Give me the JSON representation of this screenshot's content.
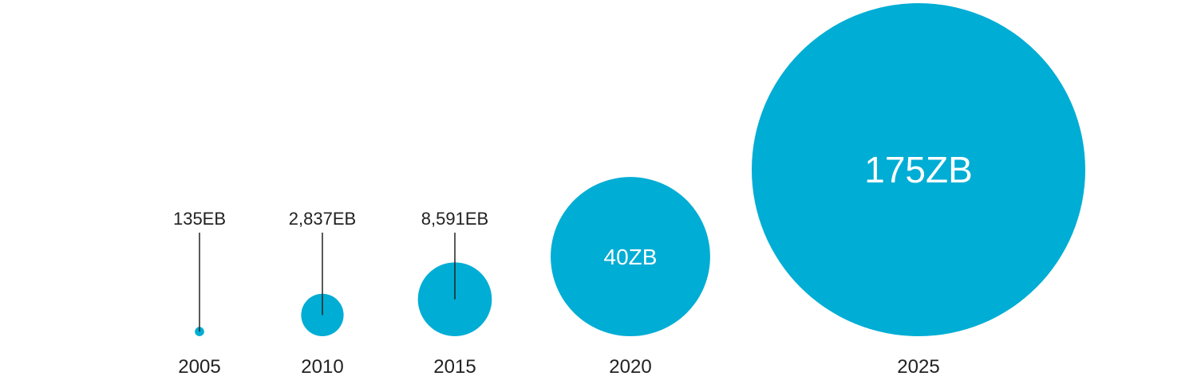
{
  "chart_data": {
    "type": "bubble",
    "unit_note": "",
    "bubble_color": "#00ADD4",
    "text_color": "#222222",
    "inside_text_color": "#ffffff",
    "points": [
      {
        "year": "2005",
        "value_label": "135EB",
        "value_eb": 135,
        "label_position": "above-with-leader"
      },
      {
        "year": "2010",
        "value_label": "2,837EB",
        "value_eb": 2837,
        "label_position": "above-with-leader"
      },
      {
        "year": "2015",
        "value_label": "8,591EB",
        "value_eb": 8591,
        "label_position": "above-with-leader"
      },
      {
        "year": "2020",
        "value_label": "40ZB",
        "value_eb": 40000,
        "label_position": "inside"
      },
      {
        "year": "2025",
        "value_label": "175ZB",
        "value_eb": 175000,
        "label_position": "inside"
      }
    ]
  }
}
